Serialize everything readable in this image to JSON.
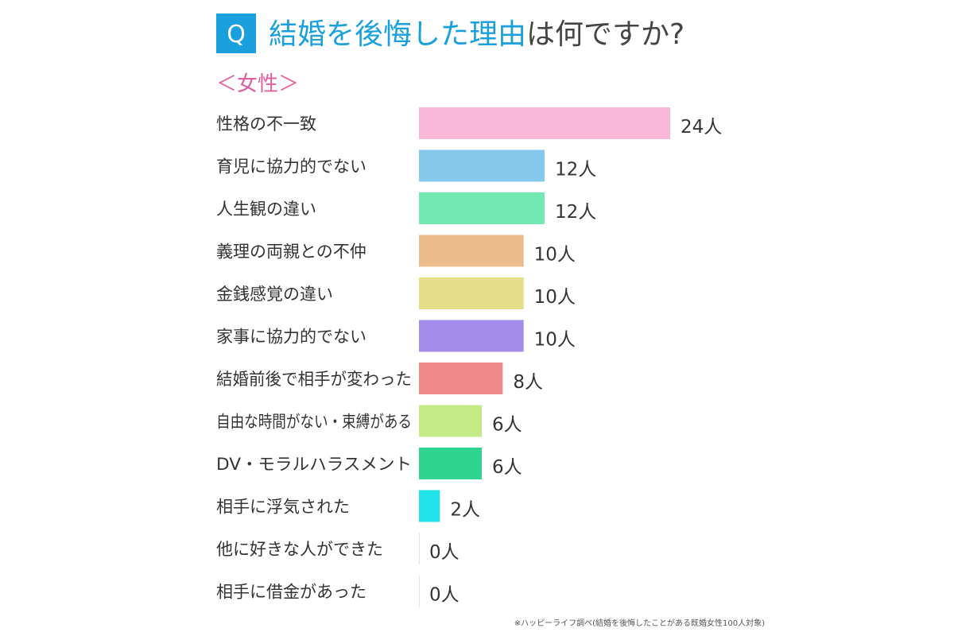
{
  "header": {
    "badge": "Q",
    "title_highlight": "結婚を後悔した理由",
    "title_rest": "は何ですか?",
    "subtitle": "＜女性＞"
  },
  "footer": {
    "note": "※ハッピーライフ調べ(結婚を後悔したことがある既婚女性100人対象)"
  },
  "colors": {
    "accent": "#1aa0dc",
    "subtitle": "#e05fa0",
    "text": "#333333"
  },
  "chart_data": {
    "type": "bar",
    "orientation": "horizontal",
    "title": "結婚を後悔した理由は何ですか?",
    "subtitle": "＜女性＞",
    "unit": "人",
    "categories": [
      "性格の不一致",
      "育児に協力的でない",
      "人生観の違い",
      "義理の両親との不仲",
      "金銭感覚の違い",
      "家事に協力的でない",
      "結婚前後で相手が変わった",
      "自由な時間がない・束縛がある",
      "DV・モラルハラスメント",
      "相手に浮気された",
      "他に好きな人ができた",
      "相手に借金があった"
    ],
    "values": [
      24,
      12,
      12,
      10,
      10,
      10,
      8,
      6,
      6,
      2,
      0,
      0
    ],
    "value_labels": [
      "24人",
      "12人",
      "12人",
      "10人",
      "10人",
      "10人",
      "8人",
      "6人",
      "6人",
      "2人",
      "0人",
      "0人"
    ],
    "bar_colors": [
      "#f9b8d8",
      "#86c7ec",
      "#72e8b3",
      "#edbb8c",
      "#e6dd88",
      "#a48ced",
      "#ef8a8c",
      "#c4eb86",
      "#2fd58f",
      "#22e3e8",
      "#dddddd",
      "#dddddd"
    ],
    "xlim": [
      0,
      24
    ],
    "grid": false,
    "legend": "none"
  }
}
